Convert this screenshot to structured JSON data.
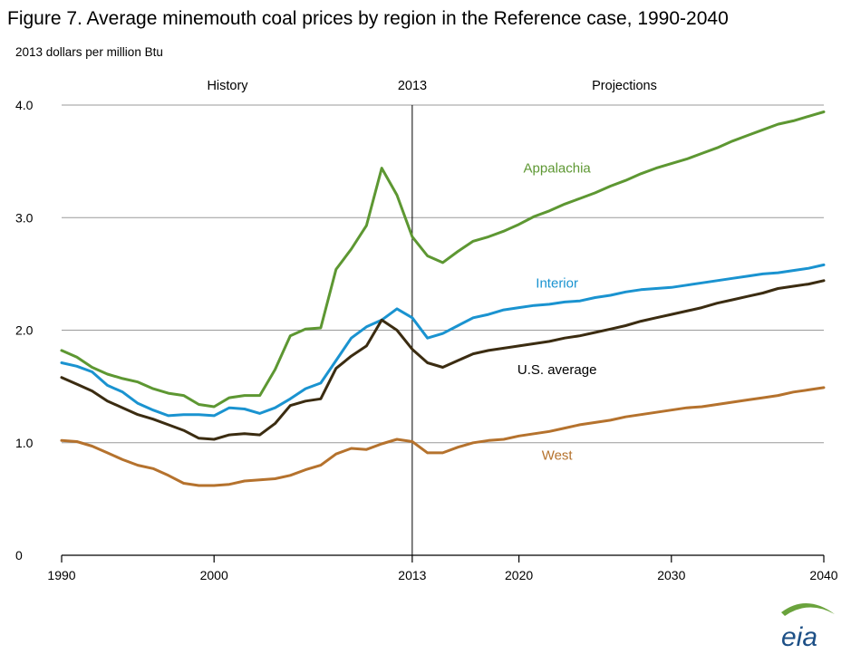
{
  "chart_data": {
    "type": "line",
    "title": "Figure 7. Average minemouth  coal prices by region in the Reference case, 1990-2040",
    "subtitle": "2013  dollars  per million  Btu",
    "annotations": {
      "history": "History",
      "divider_year": "2013",
      "projections": "Projections"
    },
    "xlim": [
      1990,
      2040
    ],
    "ylim": [
      0,
      4
    ],
    "x_ticks": [
      1990,
      2000,
      2013,
      2020,
      2030,
      2040
    ],
    "y_ticks": [
      0,
      1,
      2,
      3,
      4
    ],
    "y_tick_labels": [
      "0",
      "1.0",
      "2.0",
      "3.0",
      "4.0"
    ],
    "divider_x": 2013,
    "grid": true,
    "x": [
      1990,
      1991,
      1992,
      1993,
      1994,
      1995,
      1996,
      1997,
      1998,
      1999,
      2000,
      2001,
      2002,
      2003,
      2004,
      2005,
      2006,
      2007,
      2008,
      2009,
      2010,
      2011,
      2012,
      2013,
      2014,
      2015,
      2016,
      2017,
      2018,
      2019,
      2020,
      2021,
      2022,
      2023,
      2024,
      2025,
      2026,
      2027,
      2028,
      2029,
      2030,
      2031,
      2032,
      2033,
      2034,
      2035,
      2036,
      2037,
      2038,
      2039,
      2040
    ],
    "series": [
      {
        "name": "Appalachia",
        "color": "#5d9732",
        "values": [
          1.82,
          1.76,
          1.67,
          1.61,
          1.57,
          1.54,
          1.48,
          1.44,
          1.42,
          1.34,
          1.32,
          1.4,
          1.42,
          1.42,
          1.65,
          1.95,
          2.01,
          2.02,
          2.54,
          2.72,
          2.93,
          3.44,
          3.2,
          2.83,
          2.66,
          2.6,
          2.7,
          2.79,
          2.83,
          2.88,
          2.94,
          3.01,
          3.06,
          3.12,
          3.17,
          3.22,
          3.28,
          3.33,
          3.39,
          3.44,
          3.48,
          3.52,
          3.57,
          3.62,
          3.68,
          3.73,
          3.78,
          3.83,
          3.86,
          3.9,
          3.94
        ]
      },
      {
        "name": "Interior",
        "color": "#1a93d0",
        "values": [
          1.71,
          1.68,
          1.63,
          1.51,
          1.45,
          1.35,
          1.29,
          1.24,
          1.25,
          1.25,
          1.24,
          1.31,
          1.3,
          1.26,
          1.31,
          1.39,
          1.48,
          1.53,
          1.73,
          1.93,
          2.03,
          2.09,
          2.19,
          2.11,
          1.93,
          1.97,
          2.04,
          2.11,
          2.14,
          2.18,
          2.2,
          2.22,
          2.23,
          2.25,
          2.26,
          2.29,
          2.31,
          2.34,
          2.36,
          2.37,
          2.38,
          2.4,
          2.42,
          2.44,
          2.46,
          2.48,
          2.5,
          2.51,
          2.53,
          2.55,
          2.58
        ]
      },
      {
        "name": "U.S. average",
        "color": "#3b2c11",
        "values": [
          1.58,
          1.52,
          1.46,
          1.37,
          1.31,
          1.25,
          1.21,
          1.16,
          1.11,
          1.04,
          1.03,
          1.07,
          1.08,
          1.07,
          1.17,
          1.33,
          1.37,
          1.39,
          1.66,
          1.77,
          1.86,
          2.09,
          2.0,
          1.83,
          1.71,
          1.67,
          1.73,
          1.79,
          1.82,
          1.84,
          1.86,
          1.88,
          1.9,
          1.93,
          1.95,
          1.98,
          2.01,
          2.04,
          2.08,
          2.11,
          2.14,
          2.17,
          2.2,
          2.24,
          2.27,
          2.3,
          2.33,
          2.37,
          2.39,
          2.41,
          2.44
        ]
      },
      {
        "name": "West",
        "color": "#b5722d",
        "values": [
          1.02,
          1.01,
          0.97,
          0.91,
          0.85,
          0.8,
          0.77,
          0.71,
          0.64,
          0.62,
          0.62,
          0.63,
          0.66,
          0.67,
          0.68,
          0.71,
          0.76,
          0.8,
          0.9,
          0.95,
          0.94,
          0.99,
          1.03,
          1.01,
          0.91,
          0.91,
          0.96,
          1.0,
          1.02,
          1.03,
          1.06,
          1.08,
          1.1,
          1.13,
          1.16,
          1.18,
          1.2,
          1.23,
          1.25,
          1.27,
          1.29,
          1.31,
          1.32,
          1.34,
          1.36,
          1.38,
          1.4,
          1.42,
          1.45,
          1.47,
          1.49
        ]
      }
    ],
    "labels": [
      {
        "series": "Appalachia",
        "text": "Appalachia",
        "x": 2022.5,
        "y": 3.44
      },
      {
        "series": "Interior",
        "text": "Interior",
        "x": 2022.5,
        "y": 2.42
      },
      {
        "series": "U.S. average",
        "text": "U.S. average",
        "x": 2022.5,
        "y": 1.65
      },
      {
        "series": "West",
        "text": "West",
        "x": 2022.5,
        "y": 0.89
      }
    ]
  },
  "logo": {
    "text": "eia",
    "color": "#1c4f86"
  }
}
